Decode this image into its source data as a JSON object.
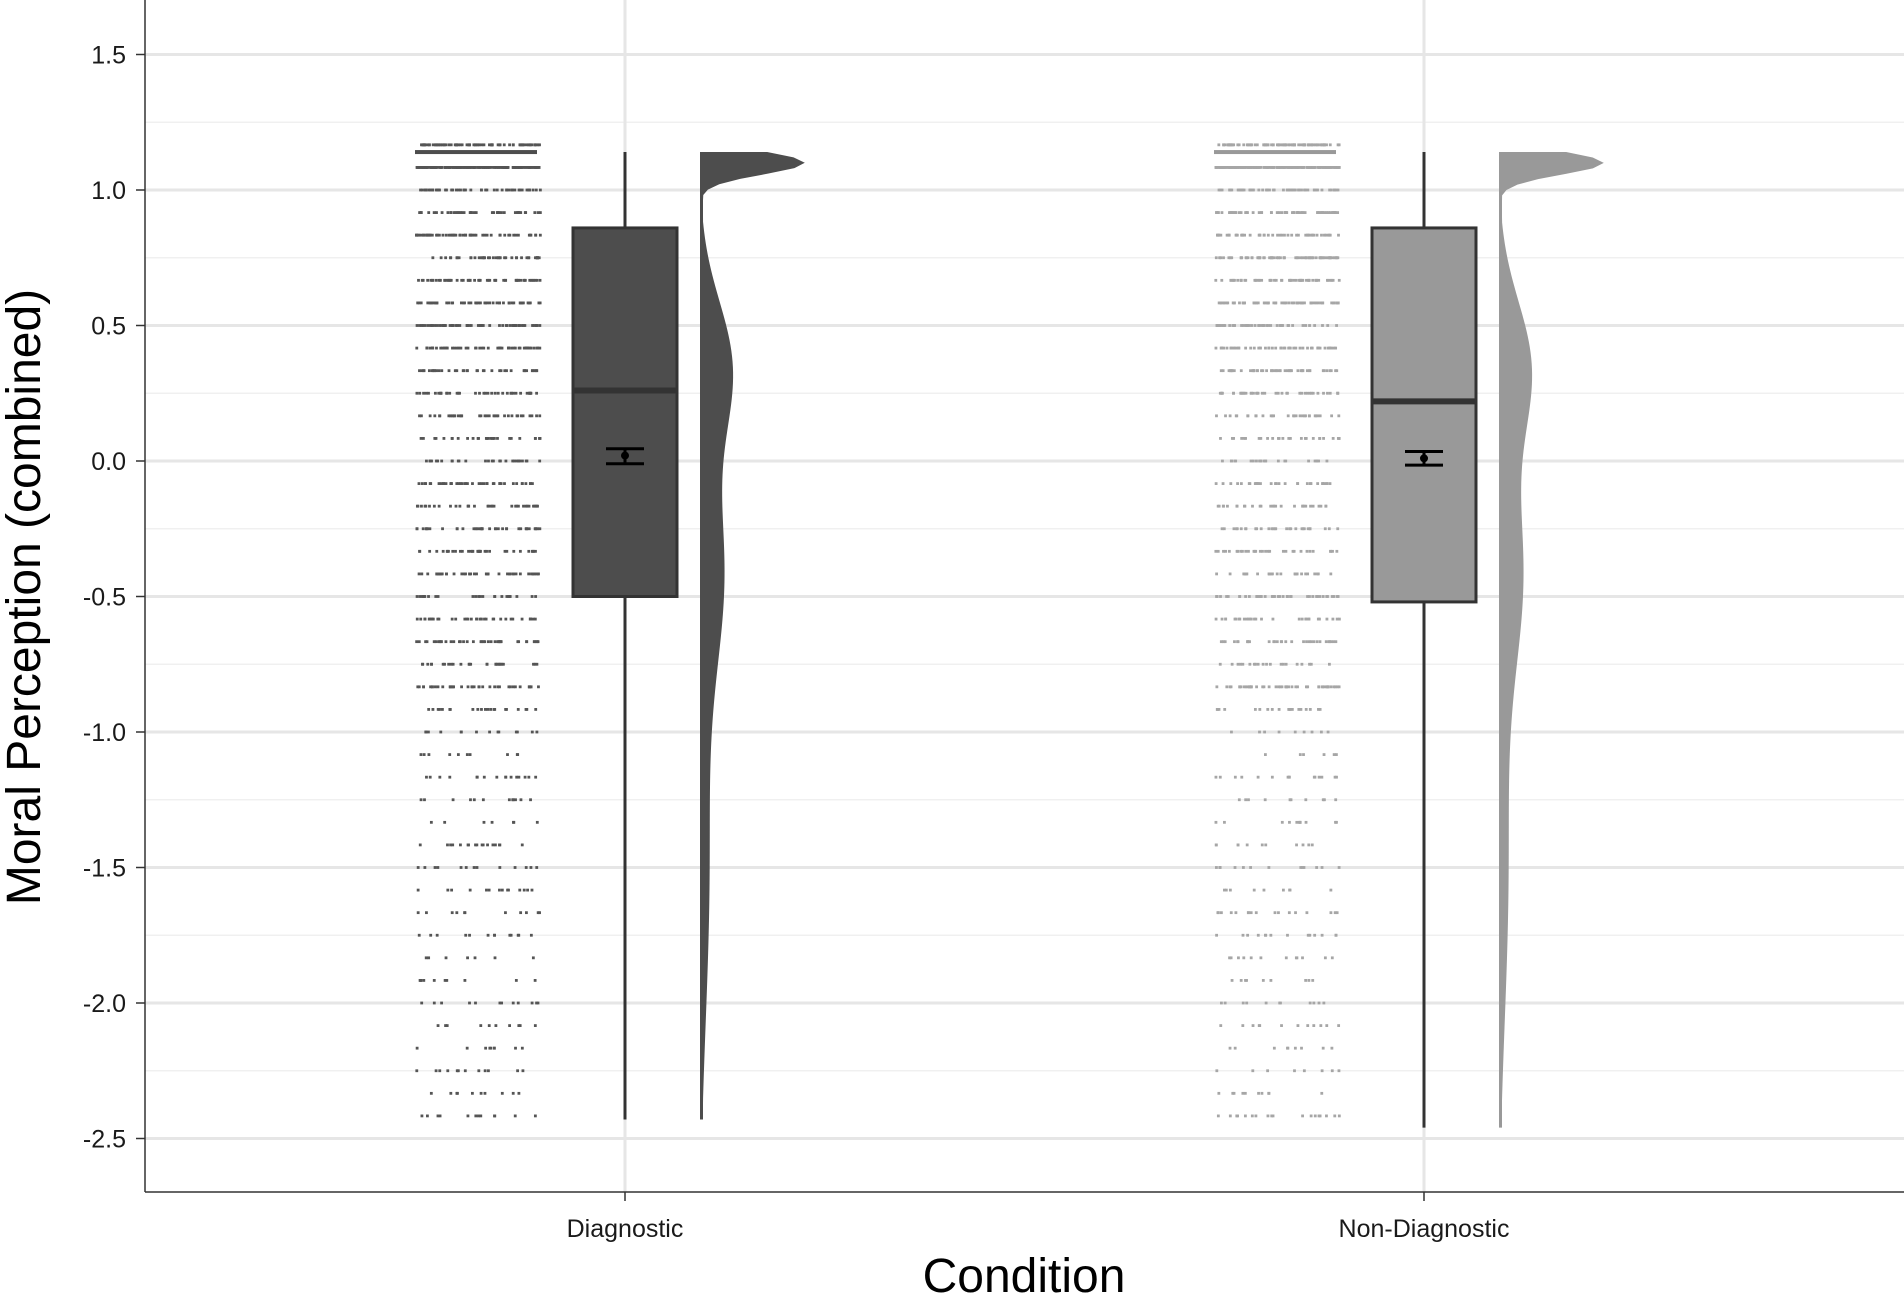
{
  "chart_data": {
    "type": "raincloud",
    "xlabel": "Condition",
    "ylabel": "Moral Perception (combined)",
    "ylim": [
      -2.7,
      1.65
    ],
    "yticks": [
      "1.5",
      "1.0",
      "0.5",
      "0.0",
      "-0.5",
      "-1.0",
      "-1.5",
      "-2.0",
      "-2.5"
    ],
    "ytick_values": [
      1.5,
      1.0,
      0.5,
      0.0,
      -0.5,
      -1.0,
      -1.5,
      -2.0,
      -2.5
    ],
    "grid": true,
    "legend": "none",
    "categories": [
      "Diagnostic",
      "Non-Diagnostic"
    ],
    "groups": [
      {
        "name": "Diagnostic",
        "color": "#4d4d4d",
        "point_color": "#555555",
        "box": {
          "min": -2.43,
          "q1": -0.5,
          "median": 0.26,
          "q3": 0.86,
          "max": 1.14
        },
        "mean": 0.02,
        "mean_ci": [
          -0.01,
          0.045
        ],
        "density_top": 1.14,
        "density_bottom": -2.43
      },
      {
        "name": "Non-Diagnostic",
        "color": "#999999",
        "point_color": "#a6a6a6",
        "box": {
          "min": -2.46,
          "q1": -0.52,
          "median": 0.22,
          "q3": 0.86,
          "max": 1.14
        },
        "mean": 0.01,
        "mean_ci": [
          -0.015,
          0.035
        ],
        "density_top": 1.14,
        "density_bottom": -2.46
      }
    ]
  }
}
